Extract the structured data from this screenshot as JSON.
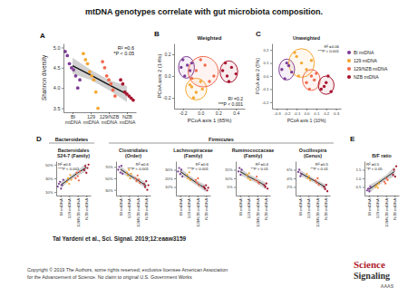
{
  "title": "mtDNA genotypes correlate with gut microbiota composition.",
  "groups": [
    "Bacteroidetes",
    "Firmicutes"
  ],
  "chart_data": [
    {
      "type": "scatter",
      "panel": "A",
      "marker": "circle",
      "ylabel": "Shannon diversity",
      "categories": [
        "BI mtDNA",
        "129 mtDNA",
        "129/NZB mtDNA",
        "NZB mtDNA"
      ],
      "colors": [
        "#7e3d97",
        "#f5a833",
        "#f0694b",
        "#a8142e"
      ],
      "values": [
        [
          4.9,
          4.8,
          4.6,
          4.5,
          4.45,
          4.3,
          4.0,
          4.2
        ],
        [
          4.85,
          4.7,
          4.6,
          4.4,
          4.3,
          4.2,
          3.9,
          3.5
        ],
        [
          4.65,
          4.5,
          4.3,
          4.2,
          4.1,
          3.95,
          3.8
        ],
        [
          4.2,
          4.1,
          3.9,
          3.85,
          3.8,
          3.75,
          3.7
        ]
      ],
      "fit": [
        4.55,
        4.32,
        4.08,
        3.85
      ],
      "fit_low": [
        4.35,
        4.2,
        3.95,
        3.65
      ],
      "fit_high": [
        4.75,
        4.45,
        4.2,
        4.05
      ],
      "ylim": [
        3.4,
        5.1
      ],
      "yticks": [
        3.5,
        {
          "value": 4,
          "label": "4.0"
        },
        4.5,
        {
          "value": 5,
          "label": "5.0"
        }
      ],
      "annotations": [
        "R² =0.6",
        "*P < 0.05"
      ]
    },
    {
      "type": "scatter",
      "panel": "B",
      "marker": "circle",
      "title": "Weighted",
      "xlabel": "PCoA axis 1 (65%)",
      "ylabel": "PCoA axis 2 (14%)",
      "series": [
        {
          "color": "#7e3d97",
          "x": [
            -0.2,
            -0.15,
            -0.12,
            -0.18,
            -0.1,
            -0.22
          ],
          "values": [
            0.15,
            0.1,
            0.05,
            0.0,
            0.12,
            0.08
          ],
          "ellipse": {
            "center": [
              -0.16,
              0.08
            ],
            "radii": [
              0.09,
              0.1
            ]
          }
        },
        {
          "color": "#f5a833",
          "x": [
            -0.1,
            -0.05,
            0.0,
            -0.08,
            0.02,
            -0.12
          ],
          "values": [
            -0.1,
            -0.15,
            -0.05,
            -0.2,
            -0.12,
            -0.08
          ],
          "ellipse": {
            "center": [
              -0.05,
              -0.12
            ],
            "radii": [
              0.12,
              0.1
            ]
          }
        },
        {
          "color": "#f0694b",
          "x": [
            -0.05,
            0.05,
            0.1,
            0.0,
            0.15,
            -0.1
          ],
          "values": [
            0.05,
            0.1,
            -0.05,
            0.15,
            0.0,
            -0.02
          ],
          "ellipse": {
            "center": [
              0.03,
              0.04
            ],
            "radii": [
              0.17,
              0.14
            ]
          }
        },
        {
          "color": "#a8142e",
          "x": [
            0.25,
            0.3,
            0.35,
            0.28,
            0.4,
            0.32
          ],
          "values": [
            0.05,
            0.0,
            0.08,
            0.12,
            0.02,
            -0.05
          ],
          "ellipse": {
            "center": [
              0.32,
              0.04
            ],
            "radii": [
              0.1,
              0.1
            ]
          }
        }
      ],
      "xlim": [
        -0.3,
        0.5
      ],
      "xticks": [
        -0.2,
        {
          "value": 0,
          "label": "0.0"
        },
        0.2,
        0.4
      ],
      "ylim": [
        -0.3,
        0.3
      ],
      "yticks": [
        -0.2,
        {
          "value": 0,
          "label": "0.0"
        },
        0.2
      ],
      "annotations": [
        "R² =0.2",
        "***P < 0.001"
      ]
    },
    {
      "type": "scatter",
      "panel": "C",
      "marker": "circle",
      "legend": "right",
      "title": "Unweighted",
      "xlabel": "PCoA axis 1 (10%)",
      "ylabel": "PCoA axis 2 (5%)",
      "series": [
        {
          "name": "BI mtDNA",
          "color": "#7e3d97",
          "x": [
            -0.25,
            -0.2,
            -0.22,
            -0.15,
            -0.18
          ],
          "values": [
            0.05,
            0.1,
            -0.02,
            0.03,
            0.08
          ],
          "ellipse": {
            "center": [
              -0.2,
              0.05
            ],
            "radii": [
              0.08,
              0.08
            ]
          }
        },
        {
          "name": "129 mtDNA",
          "color": "#f5a833",
          "x": [
            -0.1,
            -0.05,
            0.0,
            -0.08,
            0.05,
            -0.12
          ],
          "values": [
            0.15,
            0.1,
            0.05,
            0.0,
            0.12,
            0.18
          ],
          "ellipse": {
            "center": [
              -0.05,
              0.1
            ],
            "radii": [
              0.13,
              0.11
            ]
          }
        },
        {
          "name": "129/NZB mtDNA",
          "color": "#f0694b",
          "x": [
            0.0,
            0.05,
            0.1,
            0.03,
            0.08
          ],
          "values": [
            -0.05,
            0.0,
            0.02,
            -0.1,
            -0.03
          ],
          "ellipse": {
            "center": [
              0.05,
              -0.03
            ],
            "radii": [
              0.09,
              0.08
            ]
          }
        },
        {
          "name": "NZB mtDNA",
          "color": "#a8142e",
          "x": [
            0.15,
            0.2,
            0.25,
            0.22,
            0.18
          ],
          "values": [
            -0.1,
            -0.05,
            -0.12,
            0.0,
            -0.08
          ],
          "ellipse": {
            "center": [
              0.2,
              -0.07
            ],
            "radii": [
              0.08,
              0.07
            ]
          }
        }
      ],
      "xlim": [
        -0.35,
        0.35
      ],
      "xticks": [
        -0.3,
        -0.2,
        -0.1,
        {
          "value": 0,
          "label": "0.0"
        },
        0.1,
        0.2,
        0.3
      ],
      "ylim": [
        -0.25,
        0.25
      ],
      "yticks": [
        -0.2,
        -0.1,
        {
          "value": 0,
          "label": "0.0"
        },
        0.1,
        0.2
      ],
      "annotations": [
        "R² =0.06",
        "***P < 0.001"
      ]
    },
    {
      "type": "scatter",
      "panel": "D",
      "marker": "circle",
      "title": [
        "Bacteroidales",
        "S24-7 (Family)"
      ],
      "categories": [
        "BI mtDNA",
        "129 mtDNA",
        "129/NZB mtDNA",
        "NZB mtDNA"
      ],
      "colors": [
        "#7e3d97",
        "#f5a833",
        "#f0694b",
        "#a8142e"
      ],
      "values": [
        [
          18,
          22,
          25,
          15,
          20,
          28
        ],
        [
          25,
          30,
          22,
          35,
          28
        ],
        [
          30,
          38,
          33,
          27,
          40
        ],
        [
          42,
          48,
          38,
          45,
          50
        ]
      ],
      "fit": [
        20,
        29,
        38,
        46
      ],
      "fit_low": [
        15,
        26,
        34,
        40
      ],
      "fit_high": [
        25,
        32,
        42,
        52
      ],
      "ylim": [
        5,
        55
      ],
      "yticks": [
        {
          "value": 10,
          "label": "10%"
        },
        {
          "value": 30,
          "label": "30%"
        },
        {
          "value": 50,
          "label": "50%"
        }
      ],
      "annotations": [
        "R² =0.6",
        "***P < 0.001"
      ]
    },
    {
      "type": "scatter",
      "marker": "circle",
      "title": [
        "Clostridiales",
        "(Order)"
      ],
      "categories": [
        "BI mtDNA",
        "129 mtDNA",
        "129/NZB mtDNA",
        "NZB mtDNA"
      ],
      "colors": [
        "#7e3d97",
        "#f5a833",
        "#f0694b",
        "#a8142e"
      ],
      "values": [
        [
          65,
          70,
          60,
          72,
          58
        ],
        [
          60,
          55,
          65,
          50,
          58
        ],
        [
          50,
          45,
          55,
          48,
          42
        ],
        [
          40,
          35,
          45,
          30,
          38
        ]
      ],
      "fit": [
        66,
        56,
        47,
        37
      ],
      "fit_low": [
        60,
        52,
        43,
        31
      ],
      "fit_high": [
        72,
        60,
        51,
        43
      ],
      "ylim": [
        20,
        80
      ],
      "yticks": [
        {
          "value": 30,
          "label": "30%"
        },
        {
          "value": 50,
          "label": "50%"
        },
        {
          "value": 70,
          "label": "70%"
        }
      ],
      "annotations": [
        "R² =0.6",
        "***P < 0.001"
      ]
    },
    {
      "type": "scatter",
      "marker": "circle",
      "title": [
        "Lachnospiraceae",
        "(Family)"
      ],
      "categories": [
        "BI mtDNA",
        "129 mtDNA",
        "129/NZB mtDNA",
        "NZB mtDNA"
      ],
      "colors": [
        "#7e3d97",
        "#f5a833",
        "#f0694b",
        "#a8142e"
      ],
      "values": [
        [
          28,
          32,
          25,
          30,
          22
        ],
        [
          24,
          20,
          27,
          18
        ],
        [
          18,
          15,
          20,
          12
        ],
        [
          10,
          8,
          12,
          6,
          9
        ]
      ],
      "fit": [
        28,
        21,
        14,
        8
      ],
      "fit_low": [
        24,
        18,
        11,
        4
      ],
      "fit_high": [
        32,
        24,
        17,
        12
      ],
      "ylim": [
        0,
        40
      ],
      "yticks": [
        {
          "value": 10,
          "label": "10%"
        },
        {
          "value": 20,
          "label": "20%"
        },
        {
          "value": 30,
          "label": "30%"
        }
      ],
      "annotations": [
        "R² =0.6",
        "***P < 0.001"
      ]
    },
    {
      "type": "scatter",
      "marker": "circle",
      "title": [
        "Ruminococcaceae",
        "(Family)"
      ],
      "categories": [
        "BI mtDNA",
        "129 mtDNA",
        "129/NZB mtDNA",
        "NZB mtDNA"
      ],
      "colors": [
        "#7e3d97",
        "#f5a833",
        "#f0694b",
        "#a8142e"
      ],
      "values": [
        [
          14,
          16,
          12,
          15
        ],
        [
          12,
          10,
          13,
          9
        ],
        [
          9,
          11,
          8,
          7
        ],
        [
          6,
          5,
          7,
          4
        ]
      ],
      "fit": [
        14,
        11,
        8.5,
        5.5
      ],
      "fit_low": [
        12,
        9.5,
        7,
        3.5
      ],
      "fit_high": [
        16,
        12.5,
        10,
        7.5
      ],
      "ylim": [
        0,
        20
      ],
      "yticks": [
        {
          "value": 5,
          "label": "5%"
        },
        {
          "value": 10,
          "label": "10%"
        },
        {
          "value": 15,
          "label": "15%"
        }
      ],
      "annotations": [
        "R² =0.4",
        "**P < 0.01"
      ]
    },
    {
      "type": "scatter",
      "marker": "circle",
      "title": [
        "Oscillospira",
        "(Genus)"
      ],
      "categories": [
        "BI mtDNA",
        "129 mtDNA",
        "129/NZB mtDNA",
        "NZB mtDNA"
      ],
      "colors": [
        "#7e3d97",
        "#f5a833",
        "#f0694b",
        "#a8142e"
      ],
      "values": [
        [
          5.5,
          6,
          4.5,
          5
        ],
        [
          5,
          4,
          4.5,
          3.5
        ],
        [
          3.5,
          3,
          4,
          2.5
        ],
        [
          2,
          1.5,
          2.5,
          1
        ]
      ],
      "fit": [
        5.3,
        4.2,
        3.1,
        1.9
      ],
      "fit_low": [
        4.6,
        3.7,
        2.6,
        1.2
      ],
      "fit_high": [
        6,
        4.7,
        3.6,
        2.6
      ],
      "ylim": [
        0,
        8
      ],
      "yticks": [
        {
          "value": 2,
          "label": "2%"
        },
        {
          "value": 4,
          "label": "4%"
        },
        {
          "value": 6,
          "label": "6%"
        }
      ],
      "annotations": [
        "R² =0.5",
        "**P < 0.01"
      ]
    },
    {
      "type": "scatter",
      "panel": "E",
      "marker": "circle",
      "title": [
        "B/F ratio"
      ],
      "categories": [
        "BI mtDNA",
        "129 mtDNA",
        "129/NZB mtDNA",
        "NZB mtDNA"
      ],
      "colors": [
        "#7e3d97",
        "#f5a833",
        "#f0694b",
        "#a8142e"
      ],
      "values": [
        [
          0.3,
          0.4,
          0.25,
          0.5
        ],
        [
          0.5,
          0.6,
          0.45,
          0.7
        ],
        [
          0.8,
          0.7,
          1.0,
          0.9
        ],
        [
          1.2,
          1.5,
          1.1,
          1.7
        ]
      ],
      "fit": [
        0.35,
        0.7,
        1.05,
        1.4
      ],
      "fit_low": [
        0.1,
        0.55,
        0.9,
        1.1
      ],
      "fit_high": [
        0.6,
        0.85,
        1.2,
        1.7
      ],
      "ylim": [
        0,
        2
      ],
      "yticks": [
        0.5,
        {
          "value": 1,
          "label": "1.0"
        },
        1.5
      ],
      "annotations": [
        "R² =0.5",
        "*P < 0.05"
      ]
    }
  ],
  "footer": {
    "citation": "Tal Yardeni et al., Sci. Signal. 2019;12:eaaw3159",
    "copyright": [
      "Copyright © 2019 The Authors, some rights reserved; exclusive licensee American Association",
      "for the Advancement of Science. No claim to original U.S. Government Works"
    ],
    "logo": [
      "Science",
      "Signaling",
      "AAAS"
    ]
  }
}
